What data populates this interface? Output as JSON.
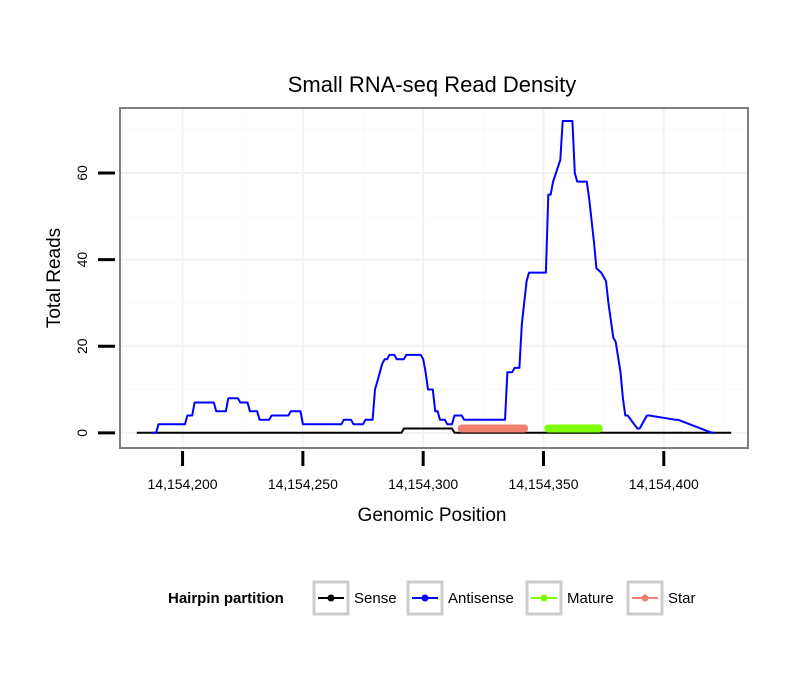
{
  "chart_data": {
    "type": "line",
    "title": "Small RNA-seq Read Density",
    "xlabel": "Genomic Position",
    "ylabel": "Total Reads",
    "xlim": [
      14154174,
      14154435
    ],
    "ylim": [
      -3.5,
      75
    ],
    "x_ticks": [
      14154200,
      14154250,
      14154300,
      14154350,
      14154400
    ],
    "x_tick_labels": [
      "14,154,200",
      "14,154,250",
      "14,154,300",
      "14,154,350",
      "14,154,400"
    ],
    "y_ticks": [
      0,
      20,
      40,
      60
    ],
    "y_tick_labels": [
      "0",
      "20",
      "40",
      "60"
    ],
    "grid": true,
    "legend": {
      "title": "Hairpin partition",
      "position": "bottom",
      "entries": [
        {
          "name": "Sense",
          "color": "#000000"
        },
        {
          "name": "Antisense",
          "color": "#0000ff"
        },
        {
          "name": "Mature",
          "color": "#7fff00"
        },
        {
          "name": "Star",
          "color": "#f08070"
        }
      ]
    },
    "series": [
      {
        "name": "Sense",
        "color": "#000000",
        "x": [
          14154181,
          14154291,
          14154292,
          14154312,
          14154313,
          14154428
        ],
        "y": [
          0,
          0,
          1,
          1,
          0,
          0
        ]
      },
      {
        "name": "Antisense",
        "color": "#0000ff",
        "x": [
          14154187,
          14154189,
          14154190,
          14154201,
          14154202,
          14154204,
          14154205,
          14154213,
          14154214,
          14154218,
          14154219,
          14154223,
          14154224,
          14154227,
          14154228,
          14154231,
          14154232,
          14154236,
          14154237,
          14154244,
          14154245,
          14154249,
          14154250,
          14154252,
          14154253,
          14154266,
          14154267,
          14154270,
          14154271,
          14154275,
          14154276,
          14154279,
          14154280,
          14154281,
          14154282,
          14154283,
          14154284,
          14154285,
          14154286,
          14154288,
          14154289,
          14154292,
          14154293,
          14154294,
          14154295,
          14154299,
          14154300,
          14154301,
          14154302,
          14154304,
          14154305,
          14154306,
          14154307,
          14154309,
          14154310,
          14154312,
          14154313,
          14154316,
          14154317,
          14154334,
          14154335,
          14154337,
          14154338,
          14154340,
          14154341,
          14154343,
          14154344,
          14154346,
          14154347,
          14154351,
          14154352,
          14154353,
          14154354,
          14154357,
          14154358,
          14154362,
          14154363,
          14154364,
          14154365,
          14154368,
          14154369,
          14154371,
          14154372,
          14154374,
          14154375,
          14154376,
          14154377,
          14154379,
          14154380,
          14154382,
          14154383,
          14154384,
          14154385,
          14154389,
          14154390,
          14154393,
          14154394,
          14154405,
          14154406,
          14154420,
          14154421
        ],
        "y": [
          0,
          0,
          2,
          2,
          4,
          4,
          7,
          7,
          5,
          5,
          8,
          8,
          7,
          7,
          5,
          5,
          3,
          3,
          4,
          4,
          5,
          5,
          2,
          2,
          2,
          2,
          3,
          3,
          2,
          2,
          3,
          3,
          10,
          12,
          14,
          16,
          17,
          17,
          18,
          18,
          17,
          17,
          18,
          18,
          18,
          18,
          17,
          14,
          10,
          10,
          5,
          5,
          3,
          3,
          2,
          2,
          4,
          4,
          3,
          3,
          14,
          14,
          15,
          15,
          25,
          35,
          37,
          37,
          37,
          37,
          55,
          55,
          58,
          63,
          72,
          72,
          60,
          58,
          58,
          58,
          54,
          44,
          38,
          37,
          36,
          35,
          30,
          22,
          21,
          14,
          8,
          4,
          4,
          1,
          1,
          4,
          4,
          3,
          3,
          0,
          0
        ]
      },
      {
        "name": "Mature",
        "color": "#7fff00",
        "x": [
          14154352,
          14154373
        ],
        "y": [
          1,
          1
        ]
      },
      {
        "name": "Star",
        "color": "#f08070",
        "x": [
          14154316,
          14154342
        ],
        "y": [
          1,
          1
        ]
      }
    ]
  }
}
